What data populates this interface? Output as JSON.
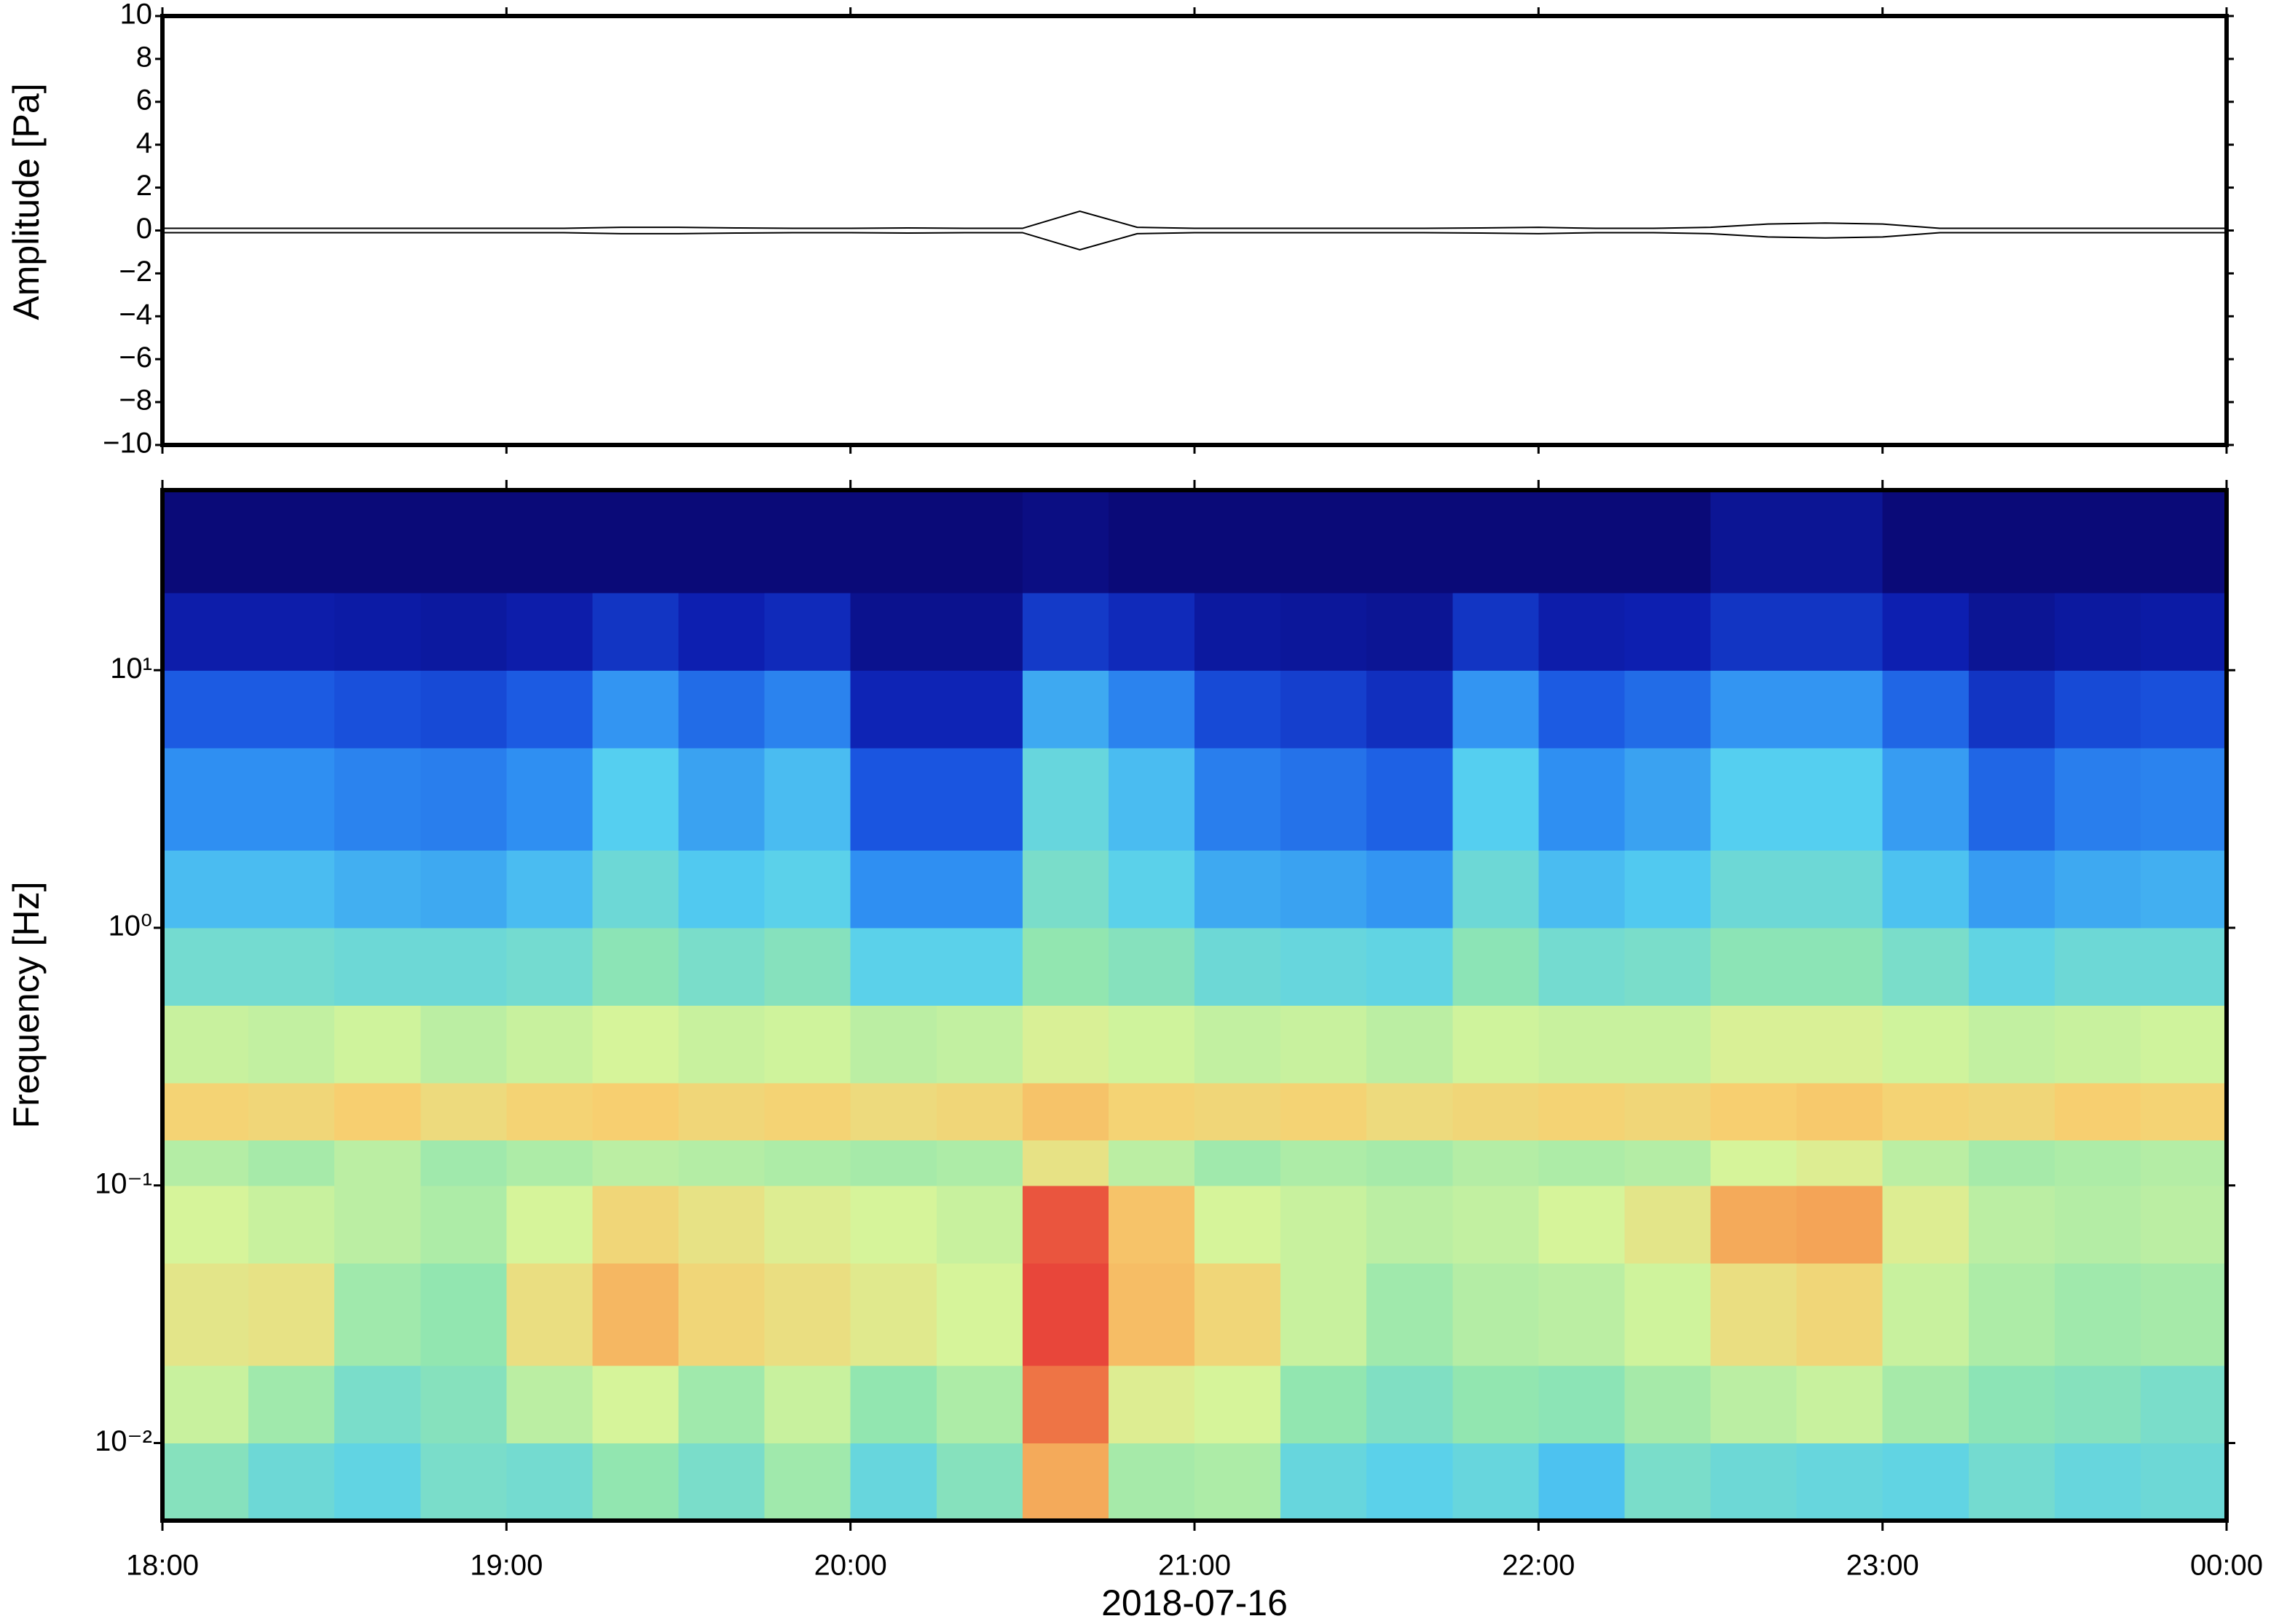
{
  "chart_data": [
    {
      "type": "line",
      "ylabel": "Amplitude [Pa]",
      "color": "#000000",
      "x": [
        0,
        10,
        20,
        30,
        40,
        50,
        60,
        70,
        80,
        90,
        100,
        110,
        120,
        130,
        140,
        150,
        160,
        170,
        180,
        190,
        200,
        210,
        220,
        230,
        240,
        250,
        260,
        270,
        280,
        290,
        300,
        310,
        320,
        330,
        340,
        350,
        360
      ],
      "values": [
        0.1,
        0.1,
        0.1,
        0.1,
        0.1,
        0.1,
        0.1,
        0.1,
        0.15,
        0.15,
        0.12,
        0.1,
        0.1,
        0.12,
        0.1,
        0.1,
        0.9,
        0.15,
        0.1,
        0.1,
        0.1,
        0.1,
        0.1,
        0.12,
        0.15,
        0.1,
        0.1,
        0.15,
        0.3,
        0.35,
        0.3,
        0.1,
        0.1,
        0.1,
        0.1,
        0.1,
        0.1
      ],
      "ylim": [
        -10,
        10
      ],
      "yticks": [
        {
          "value": -10,
          "label": "−10"
        },
        {
          "value": -8,
          "label": "−8"
        },
        {
          "value": -6,
          "label": "−6"
        },
        {
          "value": -4,
          "label": "−4"
        },
        {
          "value": -2,
          "label": "−2"
        },
        0,
        2,
        4,
        6,
        8,
        10
      ],
      "xlim": [
        0,
        360
      ]
    },
    {
      "type": "heatmap",
      "ylabel": "Frequency [Hz]",
      "xlabel": "2018-07-16",
      "yscale": "log",
      "xlim": [
        0,
        360
      ],
      "xticks": [
        {
          "value": 0,
          "label": "18:00"
        },
        {
          "value": 60,
          "label": "19:00"
        },
        {
          "value": 120,
          "label": "20:00"
        },
        {
          "value": 180,
          "label": "21:00"
        },
        {
          "value": 240,
          "label": "22:00"
        },
        {
          "value": 300,
          "label": "23:00"
        },
        {
          "value": 360,
          "label": "00:00"
        }
      ],
      "ylim": [
        0.005,
        50
      ],
      "yticks": [
        {
          "value": 0.01,
          "label": "10⁻²"
        },
        {
          "value": 0.1,
          "label": "10⁻¹"
        },
        {
          "value": 1,
          "label": "10⁰"
        },
        {
          "value": 10,
          "label": "10¹"
        }
      ],
      "x_bins": [
        0,
        15,
        30,
        45,
        60,
        75,
        90,
        105,
        120,
        135,
        150,
        165,
        180,
        195,
        210,
        225,
        240,
        255,
        270,
        285,
        300,
        315,
        330,
        345,
        360
      ],
      "y_bins": [
        0.005,
        0.01,
        0.02,
        0.05,
        0.1,
        0.15,
        0.25,
        0.5,
        1,
        2,
        5,
        10,
        20,
        50
      ],
      "zlim": [
        0,
        10
      ],
      "colorscale": [
        "#0a0a78",
        "#0d1fb0",
        "#1a55e0",
        "#2f8ff2",
        "#55cff0",
        "#92e6b0",
        "#d6f49a",
        "#f7cf70",
        "#f2924c",
        "#e8463a",
        "#b01414"
      ],
      "z": [
        [
          4.8,
          4.4,
          4.2,
          4.6,
          4.5,
          5.0,
          4.6,
          5.2,
          4.3,
          4.8,
          7.6,
          5.3,
          5.4,
          4.3,
          4.1,
          4.3,
          3.8,
          4.6,
          4.4,
          4.3,
          4.2,
          4.5,
          4.3,
          4.4
        ],
        [
          5.8,
          5.2,
          4.6,
          4.8,
          5.6,
          6.0,
          5.2,
          5.8,
          5.0,
          5.4,
          8.4,
          6.2,
          6.0,
          5.0,
          4.7,
          5.0,
          4.9,
          5.3,
          5.6,
          5.8,
          5.3,
          4.9,
          4.8,
          4.6
        ],
        [
          6.4,
          6.5,
          5.2,
          5.0,
          6.6,
          7.4,
          6.8,
          6.6,
          6.3,
          6.0,
          9.0,
          7.3,
          6.8,
          5.8,
          5.2,
          5.5,
          5.6,
          5.9,
          6.6,
          6.8,
          5.8,
          5.4,
          5.2,
          5.3
        ],
        [
          6.0,
          5.8,
          5.6,
          5.4,
          6.0,
          6.8,
          6.5,
          6.2,
          6.0,
          5.8,
          8.8,
          7.2,
          6.0,
          5.8,
          5.6,
          5.7,
          6.0,
          6.4,
          7.6,
          7.7,
          6.2,
          5.6,
          5.5,
          5.6
        ],
        [
          5.5,
          5.3,
          5.6,
          5.2,
          5.4,
          5.6,
          5.5,
          5.4,
          5.3,
          5.4,
          6.5,
          5.6,
          5.2,
          5.4,
          5.3,
          5.5,
          5.4,
          5.5,
          6.0,
          6.2,
          5.6,
          5.3,
          5.4,
          5.5
        ],
        [
          6.9,
          6.8,
          7.0,
          6.7,
          6.9,
          7.0,
          6.8,
          6.9,
          6.7,
          6.8,
          7.2,
          6.9,
          6.8,
          6.9,
          6.7,
          6.8,
          6.9,
          6.8,
          7.0,
          7.1,
          6.9,
          6.8,
          7.0,
          6.9
        ],
        [
          5.8,
          5.7,
          5.9,
          5.6,
          5.8,
          6.0,
          5.8,
          5.9,
          5.6,
          5.7,
          6.1,
          5.9,
          5.7,
          5.8,
          5.6,
          5.9,
          5.8,
          5.8,
          6.1,
          6.1,
          5.9,
          5.7,
          5.8,
          5.9
        ],
        [
          4.5,
          4.5,
          4.4,
          4.4,
          4.5,
          4.9,
          4.6,
          4.8,
          4.1,
          4.1,
          5.0,
          4.8,
          4.4,
          4.3,
          4.2,
          4.9,
          4.5,
          4.6,
          4.9,
          4.9,
          4.6,
          4.2,
          4.4,
          4.4
        ],
        [
          3.7,
          3.7,
          3.5,
          3.4,
          3.7,
          4.4,
          3.9,
          4.1,
          3.0,
          3.0,
          4.6,
          4.1,
          3.4,
          3.3,
          3.1,
          4.4,
          3.7,
          3.9,
          4.4,
          4.4,
          3.8,
          3.2,
          3.4,
          3.5
        ],
        [
          3.0,
          3.0,
          2.8,
          2.7,
          3.0,
          4.0,
          3.3,
          3.7,
          2.0,
          2.0,
          4.3,
          3.7,
          2.7,
          2.5,
          2.2,
          4.0,
          3.0,
          3.3,
          4.0,
          4.0,
          3.2,
          2.3,
          2.7,
          2.8
        ],
        [
          2.1,
          2.1,
          1.9,
          1.8,
          2.1,
          3.1,
          2.4,
          2.8,
          1.1,
          1.1,
          3.4,
          2.8,
          1.8,
          1.6,
          1.3,
          3.1,
          2.1,
          2.4,
          3.1,
          3.1,
          2.3,
          1.4,
          1.8,
          1.9
        ],
        [
          0.9,
          0.9,
          0.8,
          0.7,
          0.9,
          1.4,
          1.0,
          1.2,
          0.4,
          0.4,
          1.5,
          1.2,
          0.7,
          0.6,
          0.5,
          1.4,
          0.9,
          1.0,
          1.4,
          1.4,
          1.0,
          0.5,
          0.7,
          0.8
        ],
        [
          0,
          0,
          0,
          0,
          0,
          0,
          0,
          0,
          0,
          0,
          0.2,
          0,
          0,
          0,
          0,
          0,
          0,
          0,
          0.5,
          0.5,
          0,
          0,
          0,
          0
        ]
      ]
    }
  ]
}
